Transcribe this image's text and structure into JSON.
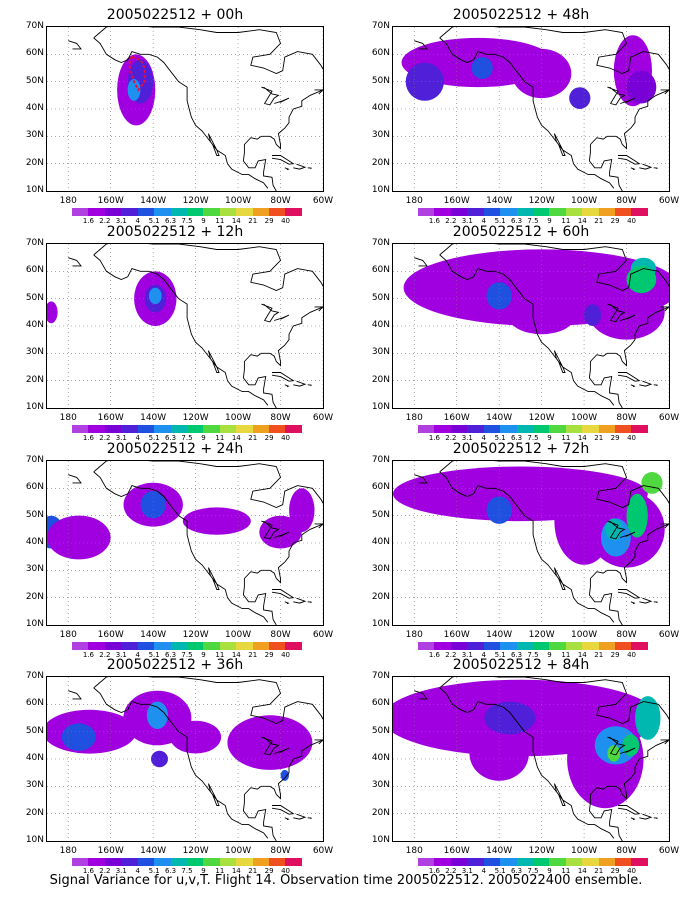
{
  "panels": [
    {
      "title": "2005022512 + 00h"
    },
    {
      "title": "2005022512 + 48h"
    },
    {
      "title": "2005022512 + 12h"
    },
    {
      "title": "2005022512 + 60h"
    },
    {
      "title": "2005022512 + 24h"
    },
    {
      "title": "2005022512 + 72h"
    },
    {
      "title": "2005022512 + 36h"
    },
    {
      "title": "2005022512 + 84h"
    }
  ],
  "lat_labels": [
    "70N",
    "60N",
    "50N",
    "40N",
    "30N",
    "20N",
    "10N"
  ],
  "lon_labels": [
    "180",
    "160W",
    "140W",
    "120W",
    "100W",
    "80W",
    "60W"
  ],
  "colorbar": {
    "labels": [
      "1.6",
      "2.2",
      "3.1",
      "4",
      "5.1",
      "6.3",
      "7.5",
      "9",
      "11",
      "14",
      "21",
      "29",
      "40"
    ],
    "colors": [
      "#a000e0",
      "#7a00d8",
      "#4f20d8",
      "#2050e0",
      "#1e90f0",
      "#00b8b0",
      "#00c870",
      "#50d840",
      "#a8e040",
      "#e8d840",
      "#f0a020",
      "#f05020",
      "#e01060"
    ]
  },
  "caption": "Signal Variance for u,v,T. Flight 14. Observation time 2005022512. 2005022400 ensemble."
}
